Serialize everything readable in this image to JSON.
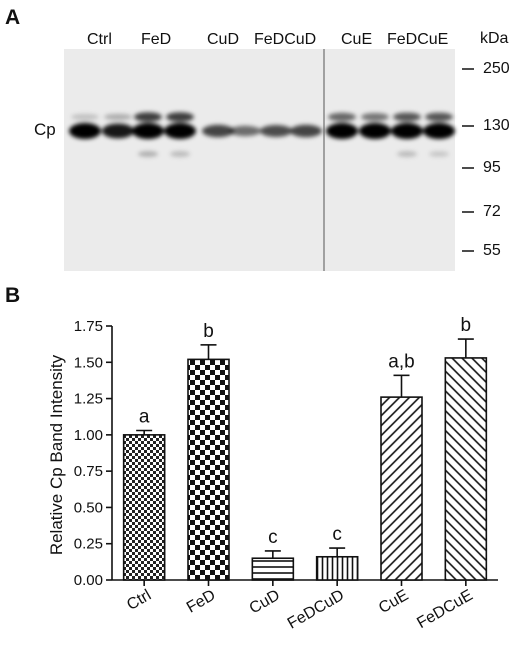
{
  "panel_a": {
    "letter": "A",
    "lanes": [
      "Ctrl",
      "FeD",
      "CuD",
      "FeDCuD",
      "CuE",
      "FeDCuE"
    ],
    "band_label": "Cp",
    "marker_title": "kDa",
    "markers": [
      "250",
      "130",
      "95",
      "72",
      "55"
    ]
  },
  "panel_b": {
    "letter": "B"
  },
  "chart_data": {
    "type": "bar",
    "title": "",
    "xlabel": "",
    "ylabel": "Relative Cp Band Intensity",
    "categories": [
      "Ctrl",
      "FeD",
      "CuD",
      "FeDCuD",
      "CuE",
      "FeDCuE"
    ],
    "values": [
      1.0,
      1.52,
      0.15,
      0.16,
      1.26,
      1.53
    ],
    "errors": [
      0.03,
      0.1,
      0.05,
      0.06,
      0.15,
      0.13
    ],
    "significance_labels": [
      "a",
      "b",
      "c",
      "c",
      "a,b",
      "b"
    ],
    "patterns": [
      "small-checker",
      "large-checker",
      "horizontal-lines",
      "vertical-lines",
      "diagonal-right",
      "diagonal-left"
    ],
    "ylim": [
      0,
      1.75
    ],
    "yticks": [
      "0.00",
      "0.25",
      "0.50",
      "0.75",
      "1.00",
      "1.25",
      "1.50",
      "1.75"
    ],
    "grid": false
  }
}
